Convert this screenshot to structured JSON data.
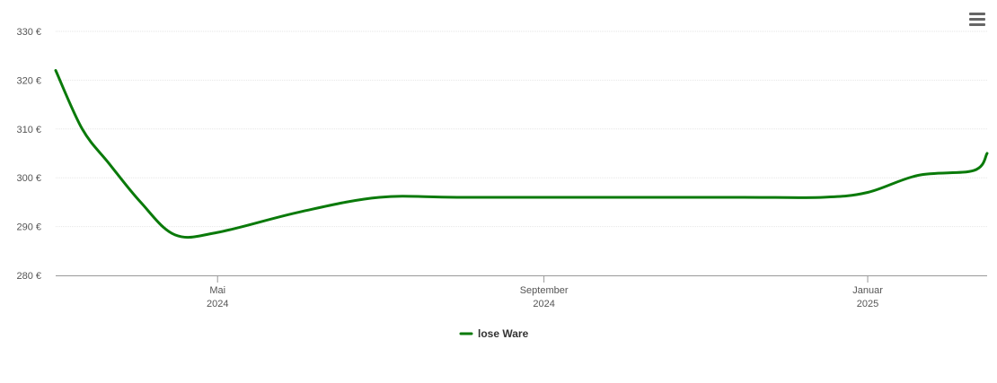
{
  "menu": {
    "icon": "hamburger-menu-icon"
  },
  "chart_data": {
    "type": "line",
    "title": "",
    "xlabel": "",
    "ylabel": "",
    "ylim": [
      280,
      330
    ],
    "y_ticks": [
      {
        "value": 280,
        "label": "280 €"
      },
      {
        "value": 290,
        "label": "290 €"
      },
      {
        "value": 300,
        "label": "300 €"
      },
      {
        "value": 310,
        "label": "310 €"
      },
      {
        "value": 320,
        "label": "320 €"
      },
      {
        "value": 330,
        "label": "330 €"
      }
    ],
    "xlim": [
      "2024-03-01",
      "2025-02-15"
    ],
    "x_ticks": [
      {
        "date": "2024-05-01",
        "month": "Mai",
        "year": "2024"
      },
      {
        "date": "2024-09-01",
        "month": "September",
        "year": "2024"
      },
      {
        "date": "2025-01-01",
        "month": "Januar",
        "year": "2025"
      }
    ],
    "grid": true,
    "legend": "bottom-center",
    "series": [
      {
        "name": "lose Ware",
        "color": "#0a7a0a",
        "points": [
          {
            "x": "2024-03-01",
            "y": 322
          },
          {
            "x": "2024-03-11",
            "y": 310
          },
          {
            "x": "2024-03-21",
            "y": 303
          },
          {
            "x": "2024-04-02",
            "y": 295
          },
          {
            "x": "2024-04-15",
            "y": 288.3
          },
          {
            "x": "2024-05-01",
            "y": 288.8
          },
          {
            "x": "2024-06-01",
            "y": 293
          },
          {
            "x": "2024-07-01",
            "y": 296
          },
          {
            "x": "2024-08-01",
            "y": 296
          },
          {
            "x": "2024-10-01",
            "y": 296
          },
          {
            "x": "2024-11-15",
            "y": 296
          },
          {
            "x": "2024-12-15",
            "y": 296
          },
          {
            "x": "2025-01-01",
            "y": 297
          },
          {
            "x": "2025-01-20",
            "y": 300.5
          },
          {
            "x": "2025-02-10",
            "y": 301.5
          },
          {
            "x": "2025-02-15",
            "y": 305
          }
        ]
      }
    ]
  }
}
